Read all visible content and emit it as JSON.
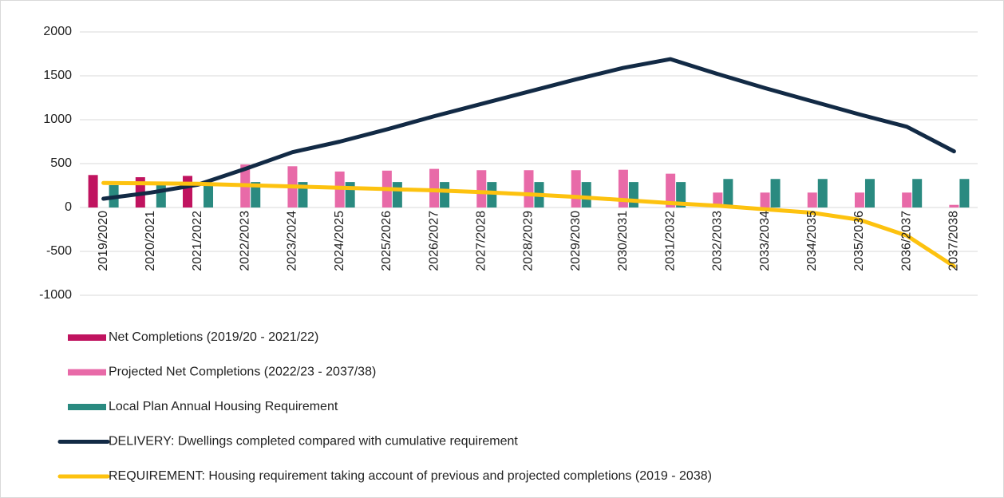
{
  "chart_data": {
    "type": "combo",
    "categories": [
      "2019/2020",
      "2020/2021",
      "2021/2022",
      "2022/2023",
      "2023/2024",
      "2024/2025",
      "2025/2026",
      "2026/2027",
      "2027/2028",
      "2028/2029",
      "2029/2030",
      "2030/2031",
      "2031/2032",
      "2032/2033",
      "2033/2034",
      "2034/2035",
      "2035/2036",
      "2036/2037",
      "2037/2038"
    ],
    "series": [
      {
        "name": "Net Completions (2019/20 - 2021/22)",
        "type": "bar",
        "color": "#c0135f",
        "values": [
          370,
          345,
          360,
          null,
          null,
          null,
          null,
          null,
          null,
          null,
          null,
          null,
          null,
          null,
          null,
          null,
          null,
          null,
          null
        ]
      },
      {
        "name": "Projected Net Completions (2022/23 - 2037/38)",
        "type": "bar",
        "color": "#e86aa8",
        "values": [
          null,
          null,
          null,
          490,
          470,
          410,
          420,
          440,
          425,
          425,
          425,
          430,
          385,
          170,
          170,
          170,
          170,
          170,
          30
        ]
      },
      {
        "name": "Local Plan Annual Housing Requirement",
        "type": "bar",
        "color": "#2a8a80",
        "values": [
          255,
          255,
          255,
          290,
          290,
          290,
          290,
          290,
          290,
          290,
          290,
          290,
          290,
          325,
          325,
          325,
          325,
          325,
          325
        ]
      },
      {
        "name": "DELIVERY: Dwellings completed compared with cumulative requirement",
        "type": "line",
        "color": "#122a45",
        "values": [
          100,
          170,
          260,
          440,
          630,
          750,
          890,
          1040,
          1180,
          1320,
          1460,
          1590,
          1690,
          1520,
          1360,
          1210,
          1060,
          920,
          640
        ]
      },
      {
        "name": "REQUIREMENT: Housing requirement taking account of previous and projected completions (2019 - 2038)",
        "type": "line",
        "color": "#fdc20f",
        "values": [
          280,
          275,
          270,
          255,
          240,
          225,
          210,
          195,
          175,
          150,
          120,
          85,
          50,
          20,
          -20,
          -60,
          -140,
          -320,
          -670
        ]
      }
    ],
    "ylim": [
      -1000,
      2000
    ],
    "yticks": [
      -1000,
      -500,
      0,
      500,
      1000,
      1500,
      2000
    ],
    "grid": true
  }
}
